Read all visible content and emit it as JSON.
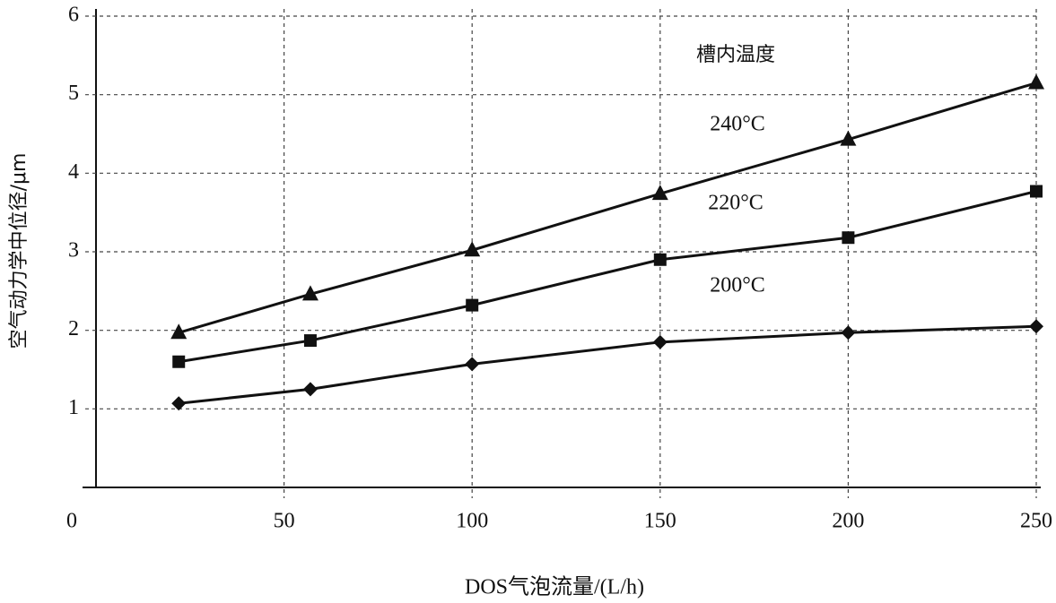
{
  "chart_data": {
    "type": "line",
    "x_label": "DOS气泡流量/(L/h)",
    "y_label": "空气动力学中位径/μm",
    "legend_title": "槽内温度",
    "x": [
      22,
      57,
      100,
      150,
      200,
      250
    ],
    "series": [
      {
        "name": "240°C",
        "color": "#111111",
        "marker": "triangle",
        "values": [
          1.97,
          2.46,
          3.02,
          3.74,
          4.43,
          5.15
        ]
      },
      {
        "name": "220°C",
        "color": "#111111",
        "marker": "square",
        "values": [
          1.6,
          1.87,
          2.32,
          2.9,
          3.18,
          3.77
        ]
      },
      {
        "name": "200°C",
        "color": "#111111",
        "marker": "diamond",
        "values": [
          1.07,
          1.25,
          1.57,
          1.85,
          1.97,
          2.05
        ]
      }
    ],
    "xlim": [
      0,
      250
    ],
    "xticks": [
      0,
      50,
      100,
      150,
      200,
      250
    ],
    "ylim": [
      0,
      6
    ],
    "yticks": [
      1,
      2,
      3,
      4,
      5,
      6
    ],
    "grid": true
  }
}
